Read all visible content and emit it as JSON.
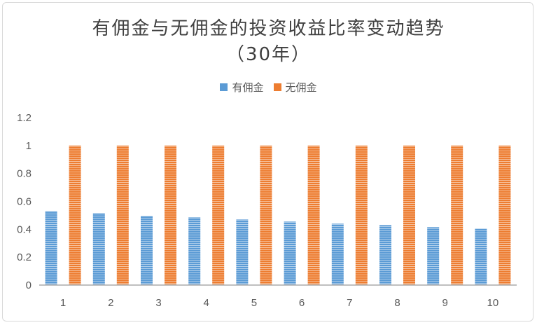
{
  "chart_data": {
    "type": "bar",
    "title_line1": "有佣金与无佣金的投资收益比率变动趋势",
    "title_line2": "（30年）",
    "categories": [
      "1",
      "2",
      "3",
      "4",
      "5",
      "6",
      "7",
      "8",
      "9",
      "10"
    ],
    "series": [
      {
        "name": "有佣金",
        "color": "#5b9bd5",
        "values": [
          0.53,
          0.515,
          0.495,
          0.485,
          0.47,
          0.455,
          0.44,
          0.43,
          0.415,
          0.405
        ]
      },
      {
        "name": "无佣金",
        "color": "#ed7d31",
        "values": [
          1,
          1,
          1,
          1,
          1,
          1,
          1,
          1,
          1,
          1
        ]
      }
    ],
    "ylim": [
      0,
      1.2
    ],
    "yticks": [
      "0",
      "0.2",
      "0.4",
      "0.6",
      "0.8",
      "1",
      "1.2"
    ],
    "grid": false,
    "legend_position": "top"
  }
}
